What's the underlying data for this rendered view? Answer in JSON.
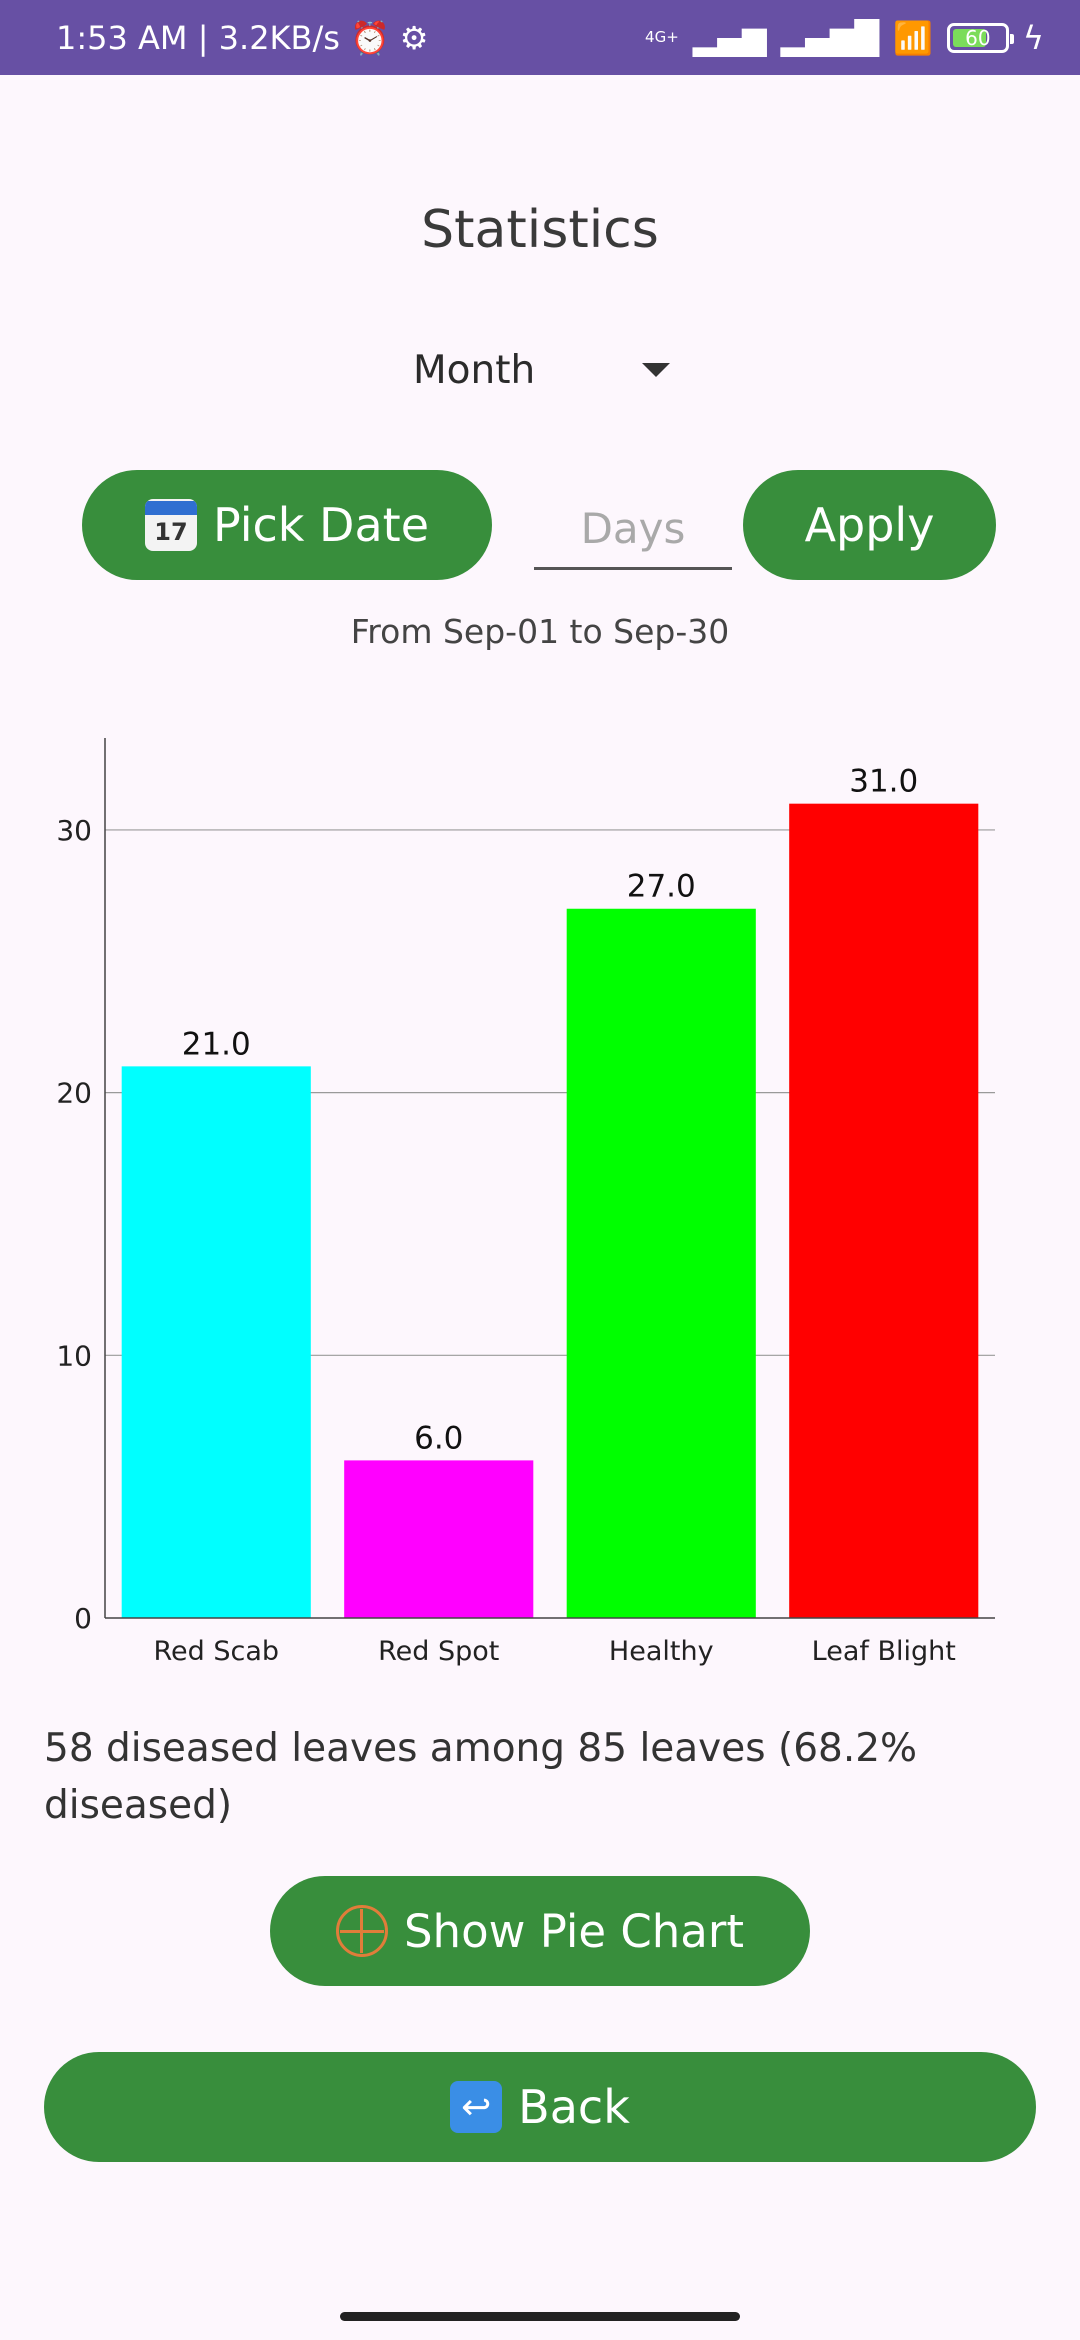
{
  "status_bar": {
    "time": "1:53 AM | 3.2KB/s",
    "network": "4G+",
    "battery": "60"
  },
  "page": {
    "title": "Statistics",
    "period_select": "Month",
    "pick_date_label": "Pick Date",
    "pick_date_icon_text": "17",
    "days_placeholder": "Days",
    "apply_label": "Apply",
    "range_text": "From Sep-01 to Sep-30",
    "summary_text": "58 diseased leaves among 85 leaves (68.2% diseased)",
    "pie_button_label": "Show Pie Chart",
    "back_label": "Back"
  },
  "chart_data": {
    "type": "bar",
    "categories": [
      "Red Scab",
      "Red Spot",
      "Healthy",
      "Leaf Blight"
    ],
    "values": [
      21.0,
      6.0,
      27.0,
      31.0
    ],
    "value_labels": [
      "21.0",
      "6.0",
      "27.0",
      "31.0"
    ],
    "colors": [
      "#00FFFF",
      "#FF00FF",
      "#00FF00",
      "#FF0000"
    ],
    "yticks": [
      0,
      10,
      20,
      30
    ],
    "ylim": [
      0,
      33.5
    ],
    "grid": true,
    "legend": false
  }
}
